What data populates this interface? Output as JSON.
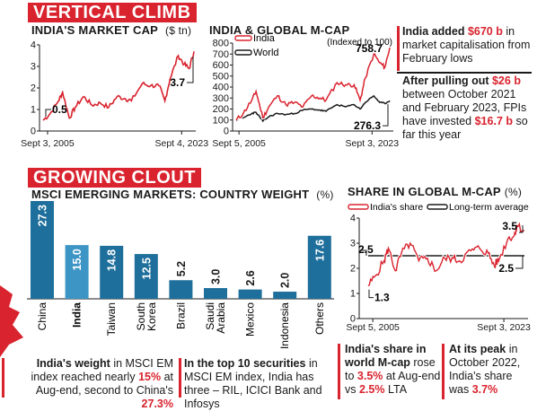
{
  "colors": {
    "accent": "#d9232e",
    "bar": "#1f6f9c",
    "bar_highlight": "#3d95c6",
    "india_line": "#d9232e",
    "world_line": "#1a1a1a"
  },
  "sections": {
    "top": "VERTICAL CLIMB",
    "bottom": "GROWING CLOUT"
  },
  "notes": {
    "india_added": {
      "p1": "India added ",
      "v1": "$670 b",
      "p2": " in market capitalisation from February lows"
    },
    "fpi": {
      "p1": "After pulling out ",
      "v1": "$26 b",
      "p2": " between October 2021 and February 2023, FPIs have invested ",
      "v2": "$16.7 b",
      "p3": " so far this year"
    },
    "weight": {
      "b": "India's weight",
      "p1": " in MSCI EM index reached nearly ",
      "v1": "15%",
      "p2": " at Aug-end, second to China's ",
      "v2": "27.3%"
    },
    "top10": {
      "b": "In the top 10 securities",
      "p1": " in MSCI EM index, India has three – RIL, ICICI Bank and Infosys"
    },
    "share_rose": {
      "b": "India's share in world M-cap",
      "p1": " rose to ",
      "v1": "3.5%",
      "p2": " at Aug-end vs ",
      "v2": "2.5%",
      "p3": " LTA"
    },
    "peak": {
      "b": "At its peak",
      "p1": " in October 2022, India's share was ",
      "v1": "3.7%"
    }
  },
  "chart_data": [
    {
      "type": "line",
      "title": "INDIA'S MARKET CAP",
      "unit": "($ tn)",
      "ylim": [
        0,
        4
      ],
      "yticks": [
        "0",
        "1",
        "2",
        "3",
        "4"
      ],
      "xticks": [
        "Sept 3, 2005",
        "Sept 4, 2023"
      ],
      "x": [
        2005.67,
        2006.5,
        2007.5,
        2008.0,
        2008.8,
        2009.5,
        2010.5,
        2011.5,
        2012.5,
        2013.5,
        2014.5,
        2015.5,
        2016.2,
        2017.5,
        2018.5,
        2019.5,
        2020.2,
        2020.8,
        2021.8,
        2022.5,
        2023.1,
        2023.67
      ],
      "series": [
        {
          "values": [
            0.5,
            0.8,
            1.4,
            1.8,
            0.6,
            1.1,
            1.6,
            1.2,
            1.3,
            1.1,
            1.6,
            1.5,
            1.4,
            2.2,
            2.1,
            2.1,
            1.4,
            2.4,
            3.5,
            3.1,
            2.9,
            3.7
          ]
        }
      ],
      "annotations": [
        {
          "label": "0.5"
        },
        {
          "label": "3.7"
        }
      ]
    },
    {
      "type": "line",
      "title": "INDIA & GLOBAL M-CAP",
      "subtitle": "(Indexed to 100)",
      "ylim": [
        0,
        800
      ],
      "yticks": [
        "0",
        "100",
        "200",
        "300",
        "400",
        "500",
        "600",
        "700",
        "800"
      ],
      "xticks": [
        "Sept 5, 2005",
        "Sept 3, 2023"
      ],
      "x": [
        2005.67,
        2006.5,
        2007.5,
        2008.0,
        2008.8,
        2009.5,
        2010.5,
        2011.5,
        2012.5,
        2013.5,
        2014.5,
        2015.5,
        2016.2,
        2017.5,
        2018.5,
        2019.5,
        2020.2,
        2020.8,
        2021.8,
        2022.5,
        2023.1,
        2023.67
      ],
      "series": [
        {
          "name": "India",
          "values": [
            100,
            160,
            280,
            360,
            120,
            220,
            320,
            240,
            260,
            220,
            320,
            300,
            280,
            440,
            420,
            420,
            280,
            480,
            700,
            620,
            580,
            758.7
          ]
        },
        {
          "name": "World",
          "values": [
            100,
            120,
            160,
            170,
            90,
            130,
            160,
            150,
            160,
            190,
            200,
            190,
            180,
            240,
            220,
            240,
            200,
            260,
            320,
            260,
            250,
            276.3
          ]
        }
      ],
      "annotations": [
        {
          "label": "758.7"
        },
        {
          "label": "276.3"
        }
      ]
    },
    {
      "type": "bar",
      "title": "MSCI EMERGING MARKETS: COUNTRY WEIGHT",
      "unit": "(%)",
      "categories": [
        "China",
        "India",
        "Taiwan",
        "South Korea",
        "Brazil",
        "Saudi Arabia",
        "Mexico",
        "Indonesia",
        "Others"
      ],
      "category_lines": [
        [
          "China"
        ],
        [
          "India"
        ],
        [
          "Taiwan"
        ],
        [
          "South",
          "Korea"
        ],
        [
          "Brazil"
        ],
        [
          "Saudi",
          "Arabia"
        ],
        [
          "Mexico"
        ],
        [
          "Indonesia"
        ],
        [
          "Others"
        ]
      ],
      "values": [
        27.3,
        15.0,
        14.8,
        12.5,
        5.2,
        3.0,
        2.6,
        2.0,
        17.6
      ],
      "value_labels": [
        "27.3",
        "15.0",
        "14.8",
        "12.5",
        "5.2",
        "3.0",
        "2.6",
        "2.0",
        "17.6"
      ],
      "highlight": "India"
    },
    {
      "type": "line",
      "title": "SHARE IN GLOBAL M-CAP",
      "unit": "(%)",
      "ylim": [
        0,
        4
      ],
      "yticks": [
        "0",
        "1",
        "2",
        "3",
        "4"
      ],
      "xticks": [
        "Sept 5, 2005",
        "Sept 3, 2023"
      ],
      "x": [
        2005.67,
        2006.5,
        2007.5,
        2008.0,
        2008.8,
        2009.5,
        2010.5,
        2011.5,
        2012.5,
        2013.5,
        2014.5,
        2015.5,
        2016.2,
        2017.5,
        2018.5,
        2019.5,
        2020.2,
        2020.8,
        2021.8,
        2022.5,
        2022.8,
        2023.67
      ],
      "series": [
        {
          "name": "India's share",
          "values": [
            1.3,
            1.7,
            2.3,
            2.8,
            1.9,
            2.6,
            3.0,
            2.3,
            2.4,
            1.9,
            2.4,
            2.4,
            2.3,
            2.7,
            2.8,
            2.6,
            2.1,
            2.4,
            3.2,
            3.3,
            3.7,
            3.5
          ]
        },
        {
          "name": "Long-term average",
          "values": [
            2.5,
            2.5,
            2.5,
            2.5,
            2.5,
            2.5,
            2.5,
            2.5,
            2.5,
            2.5,
            2.5,
            2.5,
            2.5,
            2.5,
            2.5,
            2.5,
            2.5,
            2.5,
            2.5,
            2.5,
            2.5,
            2.5
          ]
        }
      ],
      "annotations": [
        {
          "label": "2.5"
        },
        {
          "label": "1.3"
        },
        {
          "label": "3.5"
        },
        {
          "label": "2.5"
        }
      ]
    }
  ]
}
